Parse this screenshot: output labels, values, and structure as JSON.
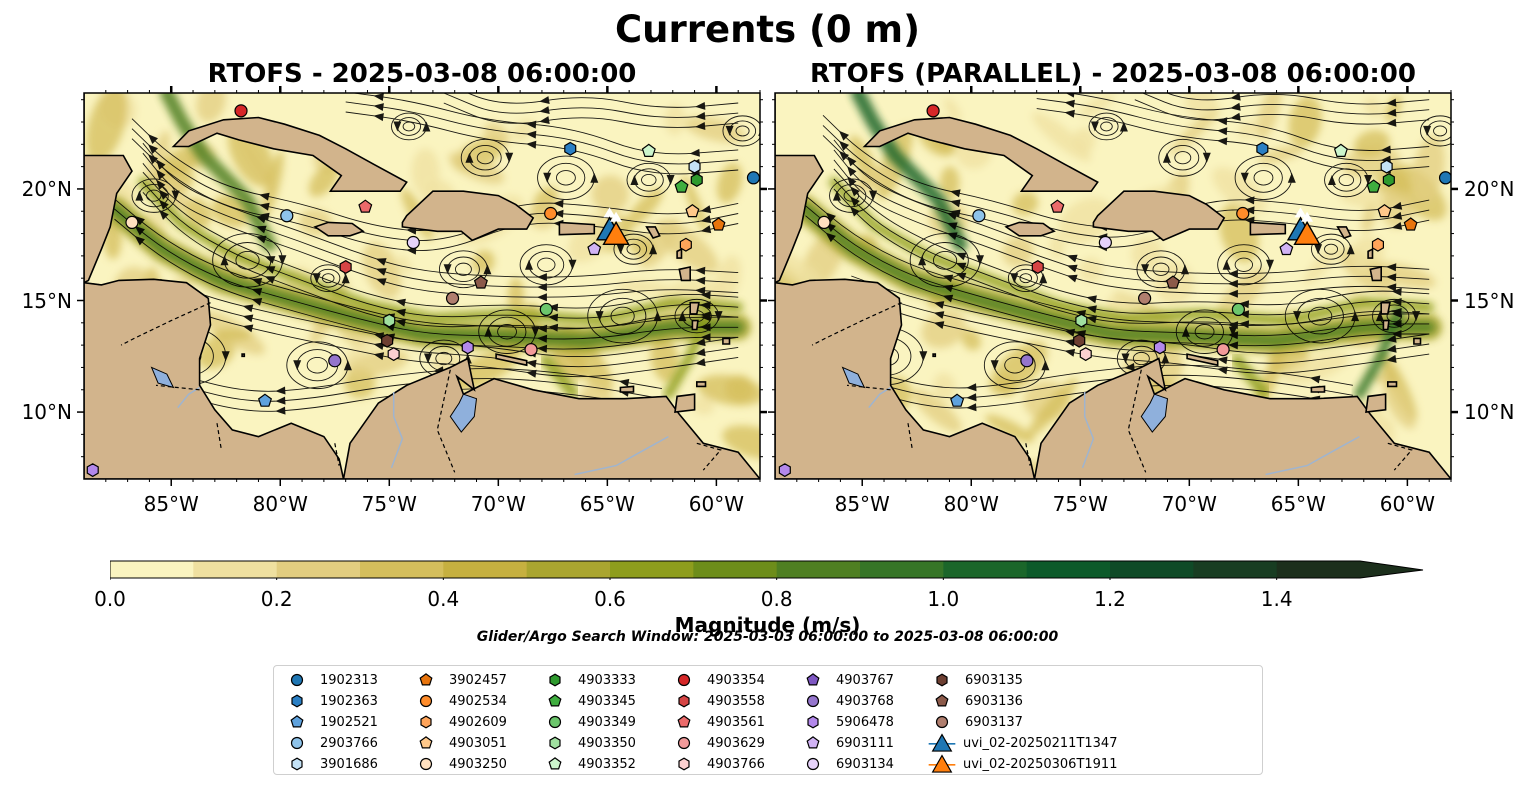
{
  "figure": {
    "title": "Currents (0 m)",
    "panels": [
      {
        "title": "RTOFS - 2025-03-08 06:00:00"
      },
      {
        "title": "RTOFS (PARALLEL) - 2025-03-08 06:00:00"
      }
    ],
    "lon_range": [
      -89,
      -58
    ],
    "lat_range": [
      7,
      24.3
    ],
    "lon_ticks": [
      {
        "value": -85,
        "label": "85°W"
      },
      {
        "value": -80,
        "label": "80°W"
      },
      {
        "value": -75,
        "label": "75°W"
      },
      {
        "value": -70,
        "label": "70°W"
      },
      {
        "value": -65,
        "label": "65°W"
      },
      {
        "value": -60,
        "label": "60°W"
      }
    ],
    "lat_ticks": [
      {
        "value": 20,
        "label": "20°N"
      },
      {
        "value": 15,
        "label": "15°N"
      },
      {
        "value": 10,
        "label": "10°N"
      }
    ],
    "land_color": "#d2b48c",
    "lake_color": "#8fb0dc",
    "colorbar": {
      "label": "Magnitude (m/s)",
      "min": 0,
      "max": 1.5,
      "extend": "max",
      "ticks": [
        {
          "value": 0,
          "label": "0.0"
        },
        {
          "value": 0.2,
          "label": "0.2"
        },
        {
          "value": 0.4,
          "label": "0.4"
        },
        {
          "value": 0.6,
          "label": "0.6"
        },
        {
          "value": 0.8,
          "label": "0.8"
        },
        {
          "value": 1.0,
          "label": "1.0"
        },
        {
          "value": 1.2,
          "label": "1.2"
        },
        {
          "value": 1.4,
          "label": "1.4"
        }
      ],
      "colors": [
        "#faf4c0",
        "#efe0a0",
        "#e2cd80",
        "#d4be5c",
        "#c6b040",
        "#aaa530",
        "#8e9d1d",
        "#6d8d1a",
        "#4f7f22",
        "#367527",
        "#1b662a",
        "#0c5a2a",
        "#0f4a27",
        "#183d22",
        "#1c2f1c"
      ]
    },
    "search_window": "Glider/Argo Search Window: 2025-03-03 06:00:00 to 2025-03-08 06:00:00",
    "legend": [
      {
        "label": "1902313",
        "marker": "circle",
        "color": "#1f77b4"
      },
      {
        "label": "1902363",
        "marker": "hexagon",
        "color": "#2a7fc4"
      },
      {
        "label": "1902521",
        "marker": "pentagon",
        "color": "#5fa2dd"
      },
      {
        "label": "2903766",
        "marker": "circle",
        "color": "#8ec3ea"
      },
      {
        "label": "3901686",
        "marker": "hexagon",
        "color": "#c4e2f6"
      },
      {
        "label": "3902457",
        "marker": "pentagon",
        "color": "#e8740c"
      },
      {
        "label": "4902534",
        "marker": "circle",
        "color": "#ff8c2a"
      },
      {
        "label": "4902609",
        "marker": "hexagon",
        "color": "#ffa45a"
      },
      {
        "label": "4903051",
        "marker": "pentagon",
        "color": "#ffc88a"
      },
      {
        "label": "4903250",
        "marker": "circle",
        "color": "#ffe0bf"
      },
      {
        "label": "4903333",
        "marker": "hexagon",
        "color": "#2e9a2e"
      },
      {
        "label": "4903345",
        "marker": "pentagon",
        "color": "#3fae3f"
      },
      {
        "label": "4903349",
        "marker": "circle",
        "color": "#6cc66c"
      },
      {
        "label": "4903350",
        "marker": "hexagon",
        "color": "#a0e0a0"
      },
      {
        "label": "4903352",
        "marker": "pentagon",
        "color": "#ccf5cc"
      },
      {
        "label": "4903354",
        "marker": "circle",
        "color": "#d62728"
      },
      {
        "label": "4903558",
        "marker": "hexagon",
        "color": "#d64545"
      },
      {
        "label": "4903561",
        "marker": "pentagon",
        "color": "#eb6a6a"
      },
      {
        "label": "4903629",
        "marker": "circle",
        "color": "#f29a9a"
      },
      {
        "label": "4903766",
        "marker": "hexagon",
        "color": "#fbd0d0"
      },
      {
        "label": "4903767",
        "marker": "pentagon",
        "color": "#7e57c2"
      },
      {
        "label": "4903768",
        "marker": "circle",
        "color": "#9575cd"
      },
      {
        "label": "5906478",
        "marker": "hexagon",
        "color": "#b388eb"
      },
      {
        "label": "6903111",
        "marker": "pentagon",
        "color": "#d1b3f5"
      },
      {
        "label": "6903134",
        "marker": "circle",
        "color": "#e6d2fa"
      },
      {
        "label": "6903135",
        "marker": "hexagon",
        "color": "#6d3f32"
      },
      {
        "label": "6903136",
        "marker": "pentagon",
        "color": "#8c5a4a"
      },
      {
        "label": "6903137",
        "marker": "circle",
        "color": "#b07e6e"
      },
      {
        "label": "uvi_02-20250211T1347",
        "marker": "triangle",
        "color": "#1f77b4"
      },
      {
        "label": "uvi_02-20250306T1911",
        "marker": "triangle",
        "color": "#ff7f0e"
      }
    ],
    "floats": [
      {
        "id": "4903354",
        "lon": -81.8,
        "lat": 23.5
      },
      {
        "id": "1902363",
        "lon": -66.7,
        "lat": 21.8
      },
      {
        "id": "4903352",
        "lon": -63.1,
        "lat": 21.7
      },
      {
        "id": "3901686",
        "lon": -61.0,
        "lat": 21.0
      },
      {
        "id": "4903333",
        "lon": -60.9,
        "lat": 20.4
      },
      {
        "id": "4903345",
        "lon": -61.6,
        "lat": 20.1
      },
      {
        "id": "1902313",
        "lon": -58.3,
        "lat": 20.5
      },
      {
        "id": "4903250",
        "lon": -86.8,
        "lat": 18.5
      },
      {
        "id": "2903766",
        "lon": -79.7,
        "lat": 18.8
      },
      {
        "id": "4903561",
        "lon": -76.1,
        "lat": 19.2
      },
      {
        "id": "4902534",
        "lon": -67.6,
        "lat": 18.9
      },
      {
        "id": "4903051",
        "lon": -61.1,
        "lat": 19.0
      },
      {
        "id": "3902457",
        "lon": -59.9,
        "lat": 18.4
      },
      {
        "id": "6903134",
        "lon": -73.9,
        "lat": 17.6
      },
      {
        "id": "6903111",
        "lon": -65.6,
        "lat": 17.3
      },
      {
        "id": "4902609",
        "lon": -61.4,
        "lat": 17.5
      },
      {
        "id": "4903558",
        "lon": -77.0,
        "lat": 16.5
      },
      {
        "id": "6903136",
        "lon": -70.8,
        "lat": 15.8
      },
      {
        "id": "6903137",
        "lon": -72.1,
        "lat": 15.1
      },
      {
        "id": "4903349",
        "lon": -67.8,
        "lat": 14.6
      },
      {
        "id": "4903350",
        "lon": -75.0,
        "lat": 14.1
      },
      {
        "id": "6903135",
        "lon": -75.1,
        "lat": 13.2
      },
      {
        "id": "4903766",
        "lon": -74.8,
        "lat": 12.6
      },
      {
        "id": "5906478",
        "lon": -71.4,
        "lat": 12.9
      },
      {
        "id": "4903629",
        "lon": -68.5,
        "lat": 12.8
      },
      {
        "id": "4903768",
        "lon": -77.5,
        "lat": 12.3
      },
      {
        "id": "1902521",
        "lon": -80.7,
        "lat": 10.5
      },
      {
        "id": "5906478",
        "lon": -88.6,
        "lat": 7.4
      }
    ],
    "gliders": [
      {
        "id": "uvi_02-20250211T1347",
        "lon": -64.9,
        "lat": 18.1
      },
      {
        "id": "uvi_02-20250306T1911",
        "lon": -64.6,
        "lat": 17.9
      }
    ]
  }
}
